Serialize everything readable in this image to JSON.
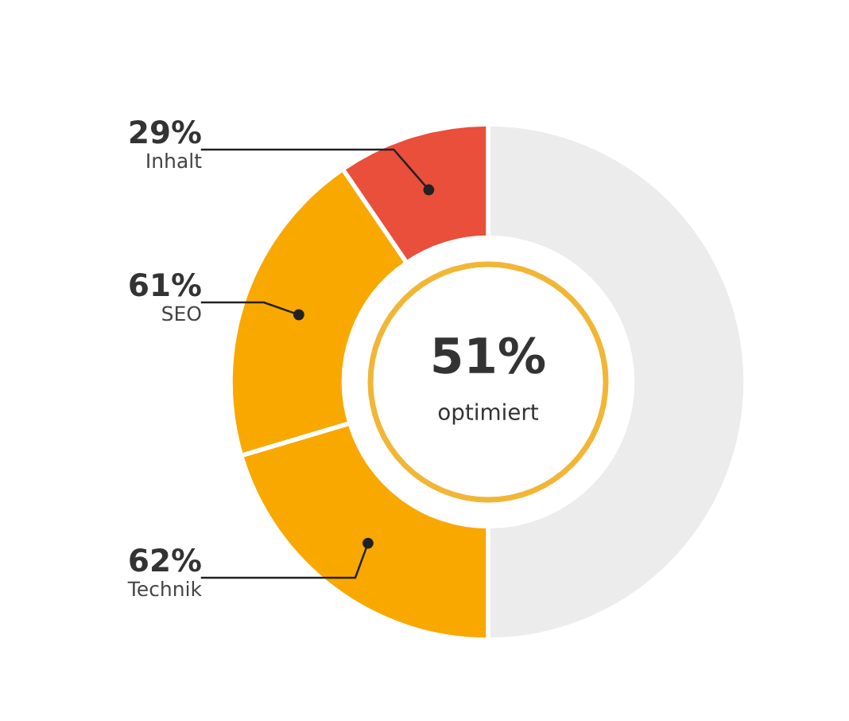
{
  "chart_data": {
    "type": "donut",
    "categories": [
      null,
      "Technik",
      "SEO",
      "Inhalt"
    ],
    "values": [
      152,
      62,
      61,
      29
    ],
    "value_labels": [
      null,
      "62%",
      "61%",
      "29%"
    ],
    "colors": [
      "#ececec",
      "#f9a800",
      "#f9a800",
      "#e94f3b"
    ],
    "annotations": [
      "51%",
      "optimiert"
    ]
  }
}
